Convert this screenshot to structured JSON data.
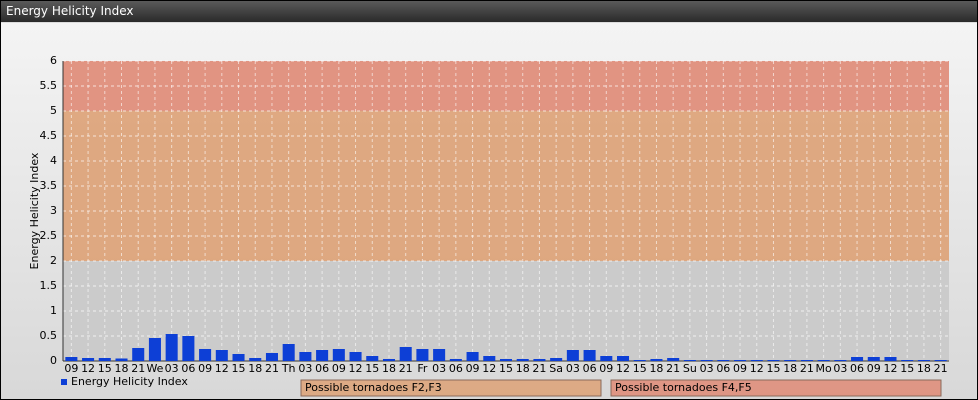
{
  "chart_data": {
    "type": "bar",
    "title": "Energy Helicity Index",
    "y_label": "Energy Helicity Index",
    "categories": [
      "09",
      "12",
      "15",
      "18",
      "21",
      "We",
      "03",
      "06",
      "09",
      "12",
      "15",
      "18",
      "21",
      "Th",
      "03",
      "06",
      "09",
      "12",
      "15",
      "18",
      "21",
      "Fr",
      "03",
      "06",
      "09",
      "12",
      "15",
      "18",
      "21",
      "Sa",
      "03",
      "06",
      "09",
      "12",
      "15",
      "18",
      "21",
      "Su",
      "03",
      "06",
      "09",
      "12",
      "15",
      "18",
      "21",
      "Mo",
      "03",
      "06",
      "09",
      "12",
      "15",
      "18",
      "21"
    ],
    "series": [
      {
        "name": "Energy Helicity Index",
        "color": "#0d3fd6",
        "values": [
          0.08,
          0.06,
          0.06,
          0.05,
          0.26,
          0.46,
          0.54,
          0.5,
          0.24,
          0.22,
          0.14,
          0.06,
          0.16,
          0.34,
          0.18,
          0.22,
          0.24,
          0.18,
          0.1,
          0.04,
          0.28,
          0.24,
          0.24,
          0.04,
          0.18,
          0.1,
          0.04,
          0.04,
          0.04,
          0.06,
          0.22,
          0.22,
          0.1,
          0.1,
          0.02,
          0.04,
          0.06,
          0.02,
          0.02,
          0.02,
          0.02,
          0.02,
          0.02,
          0.02,
          0.02,
          0.02,
          0.02,
          0.08,
          0.08,
          0.08,
          0.02,
          0.02,
          0.02
        ]
      }
    ],
    "bands": [
      {
        "from": 0,
        "to": 2,
        "color": "#c9c9c9"
      },
      {
        "from": 2,
        "to": 5,
        "color": "#dda176",
        "label": "Possible tornadoes F2,F3"
      },
      {
        "from": 5,
        "to": 6,
        "color": "#df8a76",
        "label": "Possible tornadoes F4,F5"
      }
    ],
    "ylim": [
      0,
      6
    ],
    "yticks": [
      0,
      0.5,
      1,
      1.5,
      2,
      2.5,
      3,
      3.5,
      4,
      4.5,
      5,
      5.5,
      6
    ],
    "grid": true
  }
}
